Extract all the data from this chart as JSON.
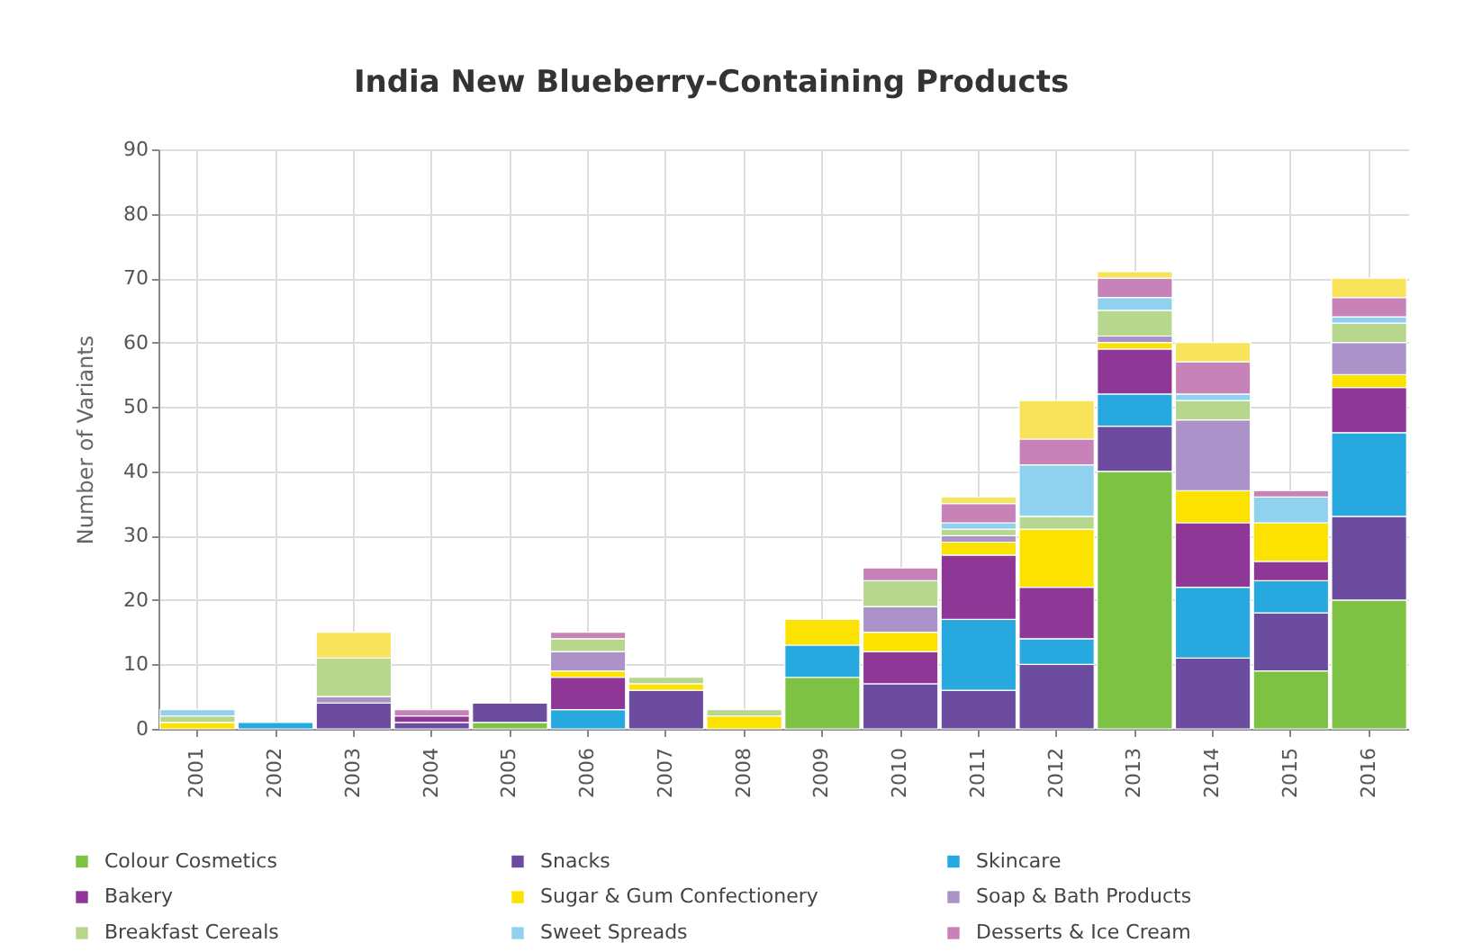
{
  "chart_data": {
    "type": "bar",
    "title": "India New Blueberry-Containing Products",
    "ylabel": "Number of Variants",
    "categories": [
      "2001",
      "2002",
      "2003",
      "2004",
      "2005",
      "2006",
      "2007",
      "2008",
      "2009",
      "2010",
      "2011",
      "2012",
      "2013",
      "2014",
      "2015",
      "2016"
    ],
    "stacked": true,
    "ylim": [
      0,
      90
    ],
    "yticks": [
      0,
      10,
      20,
      30,
      40,
      50,
      60,
      70,
      80,
      90
    ],
    "grid": true,
    "legend": "bottom",
    "series": [
      {
        "name": "Colour Cosmetics",
        "color": "#7dc242",
        "values": [
          0,
          0,
          0,
          0,
          1,
          0,
          0,
          0,
          8,
          0,
          0,
          0,
          40,
          0,
          9,
          20
        ]
      },
      {
        "name": "Snacks",
        "color": "#6b4c9e",
        "values": [
          0,
          0,
          4,
          1,
          3,
          0,
          6,
          0,
          0,
          7,
          6,
          10,
          7,
          11,
          9,
          13
        ]
      },
      {
        "name": "Skincare",
        "color": "#27a8df",
        "values": [
          0,
          1,
          0,
          0,
          0,
          3,
          0,
          0,
          5,
          0,
          11,
          4,
          5,
          11,
          5,
          13
        ]
      },
      {
        "name": "Bakery",
        "color": "#8e3796",
        "values": [
          0,
          0,
          0,
          1,
          0,
          5,
          0,
          0,
          0,
          5,
          10,
          8,
          7,
          10,
          3,
          7
        ]
      },
      {
        "name": "Sugar & Gum Confectionery",
        "color": "#fbe200",
        "values": [
          1,
          0,
          0,
          0,
          0,
          1,
          1,
          2,
          4,
          3,
          2,
          9,
          1,
          5,
          6,
          2
        ]
      },
      {
        "name": "Soap & Bath Products",
        "color": "#ab93c9",
        "values": [
          0,
          0,
          1,
          0,
          0,
          3,
          0,
          0,
          0,
          4,
          1,
          0,
          1,
          11,
          0,
          5
        ]
      },
      {
        "name": "Breakfast Cereals",
        "color": "#b6d78d",
        "values": [
          1,
          0,
          6,
          0,
          0,
          2,
          1,
          1,
          0,
          4,
          1,
          2,
          4,
          3,
          0,
          3
        ]
      },
      {
        "name": "Sweet Spreads",
        "color": "#8fd1ee",
        "values": [
          1,
          0,
          0,
          0,
          0,
          0,
          0,
          0,
          0,
          0,
          1,
          8,
          2,
          1,
          4,
          1
        ]
      },
      {
        "name": "Desserts & Ice Cream",
        "color": "#c783b8",
        "values": [
          0,
          0,
          0,
          1,
          0,
          1,
          0,
          0,
          0,
          2,
          3,
          4,
          3,
          5,
          1,
          3
        ]
      },
      {
        "color": "#f8e45a",
        "values": [
          0,
          0,
          4,
          0,
          0,
          0,
          0,
          0,
          0,
          0,
          1,
          6,
          1,
          3,
          0,
          3
        ]
      }
    ]
  }
}
